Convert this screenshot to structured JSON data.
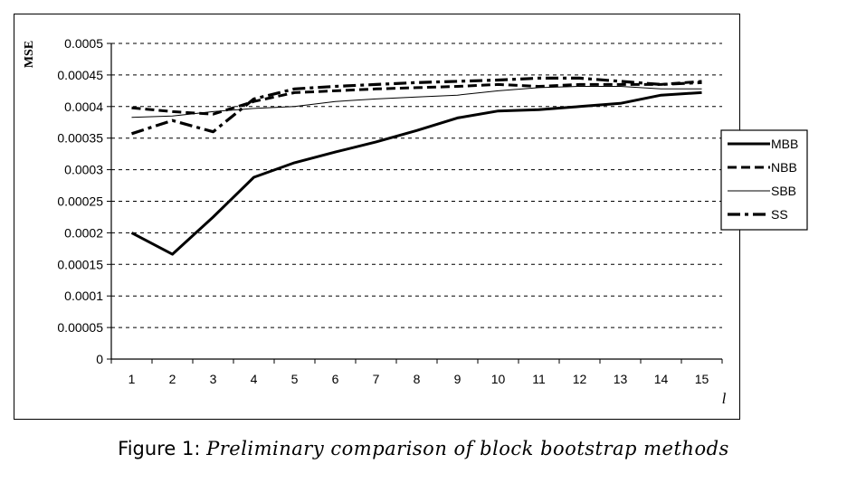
{
  "chart_data": {
    "type": "line",
    "title": "",
    "ylabel": "MSE",
    "xlabel": "l",
    "ylim": [
      0,
      0.0005
    ],
    "yticks": [
      "0",
      "0.00005",
      "0.0001",
      "0.00015",
      "0.0002",
      "0.00025",
      "0.0003",
      "0.00035",
      "0.0004",
      "0.00045",
      "0.0005"
    ],
    "x": [
      1,
      2,
      3,
      4,
      5,
      6,
      7,
      8,
      9,
      10,
      11,
      12,
      13,
      14,
      15
    ],
    "grid": "horizontal dashed",
    "legend_position": "right",
    "series": [
      {
        "name": "MBB",
        "style": "solid-thick",
        "color": "#000000",
        "values": [
          0.0002,
          0.000166,
          0.000225,
          0.000288,
          0.000311,
          0.000328,
          0.000344,
          0.000362,
          0.000382,
          0.000393,
          0.000395,
          0.0004,
          0.000405,
          0.000418,
          0.000422
        ]
      },
      {
        "name": "NBB",
        "style": "dashed",
        "color": "#000000",
        "values": [
          0.000398,
          0.000392,
          0.000388,
          0.000408,
          0.000422,
          0.000425,
          0.000428,
          0.00043,
          0.000432,
          0.000435,
          0.000432,
          0.000435,
          0.000435,
          0.000435,
          0.00044
        ]
      },
      {
        "name": "SBB",
        "style": "thin",
        "color": "#000000",
        "values": [
          0.000383,
          0.000385,
          0.000392,
          0.000397,
          0.0004,
          0.000408,
          0.000412,
          0.000415,
          0.000418,
          0.000425,
          0.00043,
          0.000432,
          0.000432,
          0.000428,
          0.000428
        ]
      },
      {
        "name": "SS",
        "style": "dash-dot-thick",
        "color": "#000000",
        "values": [
          0.000357,
          0.000378,
          0.00036,
          0.000412,
          0.000428,
          0.000432,
          0.000435,
          0.000438,
          0.00044,
          0.000442,
          0.000445,
          0.000445,
          0.00044,
          0.000435,
          0.000438
        ]
      }
    ]
  },
  "caption": {
    "label": "Figure 1",
    "text": "Preliminary comparison of block bootstrap methods"
  }
}
